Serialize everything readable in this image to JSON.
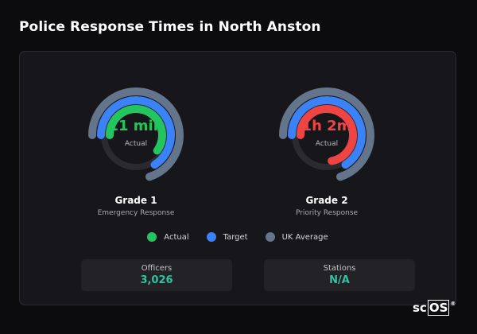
{
  "page": {
    "title": "Police Response Times in North Anston"
  },
  "colors": {
    "actual": "#22c55e",
    "target": "#3b82f6",
    "uk_average": "#64748b",
    "grade2_actual": "#ef4444",
    "value_teal": "#2ec4a0"
  },
  "gauges": [
    {
      "value": "11 min",
      "sub_label": "Actual",
      "name": "Grade 1",
      "description": "Emergency Response",
      "actual_color": "#22c55e",
      "rings": {
        "uk_average": 0.7,
        "target": 0.66,
        "actual": 0.6
      }
    },
    {
      "value": "1h 2m",
      "sub_label": "Actual",
      "name": "Grade 2",
      "description": "Priority Response",
      "actual_color": "#ef4444",
      "rings": {
        "uk_average": 0.7,
        "target": 0.66,
        "actual": 0.72
      }
    }
  ],
  "legend": [
    {
      "label": "Actual",
      "color": "#22c55e"
    },
    {
      "label": "Target",
      "color": "#3b82f6"
    },
    {
      "label": "UK Average",
      "color": "#64748b"
    }
  ],
  "stats": [
    {
      "label": "Officers",
      "value": "3,026"
    },
    {
      "label": "Stations",
      "value": "N/A"
    }
  ],
  "logo": {
    "plain": "sc",
    "boxed": "OS",
    "mark": "®"
  }
}
